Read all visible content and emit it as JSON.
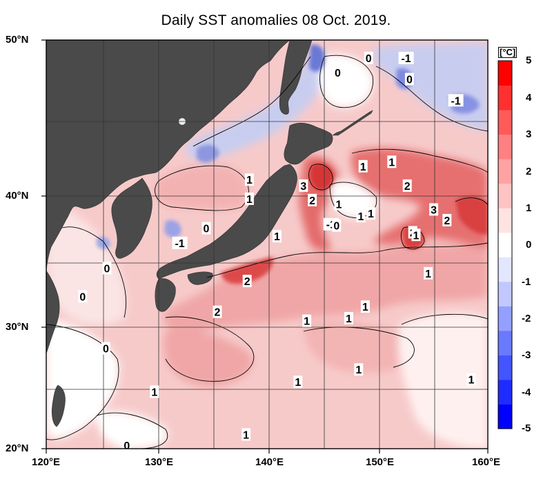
{
  "title": "Daily SST anomalies 08 Oct. 2019.",
  "y_axis_labels": [
    "50°N",
    "40°N",
    "30°N",
    "20°N"
  ],
  "x_axis_labels": [
    "120°E",
    "130°E",
    "140°E",
    "150°E",
    "160°E"
  ],
  "colorbar": {
    "unit": "[°C]",
    "tick_labels": [
      "5",
      "4",
      "3",
      "2",
      "1",
      "0",
      "-1",
      "-2",
      "-3",
      "-4",
      "-5"
    ],
    "scale": [
      "#0000ff",
      "#1f2cff",
      "#4255ff",
      "#6a7aff",
      "#94a0ff",
      "#c0c8ff",
      "#e2e6ff",
      "#ffffff",
      "#ffe2e2",
      "#ffc3c3",
      "#ffa2a2",
      "#ff8080",
      "#ff5a5a",
      "#ff3030",
      "#ff0000"
    ]
  },
  "colors": {
    "land": "#4a4a4a",
    "warm_bg": "#f7c9c9",
    "warm2": "#f0a0a0",
    "warm3": "#e56a6a",
    "warm4": "#d43434",
    "cold1": "#c8ceef",
    "cold2": "#8e99e0",
    "cold3": "#5865c8",
    "neutral": "#ffffff",
    "grid": "#333333"
  },
  "contour_labels": [
    {
      "text": "0",
      "lon": 125.5,
      "lat": 34.6
    },
    {
      "text": "0",
      "lon": 123.3,
      "lat": 32.4
    },
    {
      "text": "-1",
      "lon": 132.1,
      "lat": 36.5
    },
    {
      "text": "0",
      "lon": 134.5,
      "lat": 37.6
    },
    {
      "text": "1",
      "lon": 138.4,
      "lat": 41.1
    },
    {
      "text": "1",
      "lon": 138.4,
      "lat": 39.8
    },
    {
      "text": "3",
      "lon": 143.3,
      "lat": 40.7
    },
    {
      "text": "2",
      "lon": 144.1,
      "lat": 39.7
    },
    {
      "text": "1",
      "lon": 146.5,
      "lat": 39.4
    },
    {
      "text": "-1",
      "lon": 145.8,
      "lat": 37.9
    },
    {
      "text": "0",
      "lon": 146.3,
      "lat": 37.8
    },
    {
      "text": "1",
      "lon": 148.5,
      "lat": 38.5
    },
    {
      "text": "1",
      "lon": 149.4,
      "lat": 38.7
    },
    {
      "text": "1",
      "lon": 140.9,
      "lat": 37.0
    },
    {
      "text": "0",
      "lon": 146.4,
      "lat": 48.0
    },
    {
      "text": "0",
      "lon": 149.2,
      "lat": 48.9
    },
    {
      "text": "-1",
      "lon": 152.6,
      "lat": 48.9
    },
    {
      "text": "0",
      "lon": 152.9,
      "lat": 47.6
    },
    {
      "text": "-1",
      "lon": 157.1,
      "lat": 46.3
    },
    {
      "text": "1",
      "lon": 148.7,
      "lat": 42.0
    },
    {
      "text": "1",
      "lon": 151.3,
      "lat": 42.3
    },
    {
      "text": "2",
      "lon": 152.7,
      "lat": 40.7
    },
    {
      "text": "3",
      "lon": 155.1,
      "lat": 39.0
    },
    {
      "text": "2",
      "lon": 156.3,
      "lat": 38.2
    },
    {
      "text": "2",
      "lon": 153.2,
      "lat": 37.3
    },
    {
      "text": "1",
      "lon": 153.5,
      "lat": 37.1
    },
    {
      "text": "1",
      "lon": 154.6,
      "lat": 34.2
    },
    {
      "text": "2",
      "lon": 138.2,
      "lat": 33.6
    },
    {
      "text": "2",
      "lon": 135.5,
      "lat": 31.2
    },
    {
      "text": "1",
      "lon": 148.9,
      "lat": 31.6
    },
    {
      "text": "1",
      "lon": 147.4,
      "lat": 30.7
    },
    {
      "text": "1",
      "lon": 143.6,
      "lat": 30.5
    },
    {
      "text": "0",
      "lon": 125.4,
      "lat": 28.3
    },
    {
      "text": "1",
      "lon": 148.3,
      "lat": 26.6
    },
    {
      "text": "1",
      "lon": 142.8,
      "lat": 25.6
    },
    {
      "text": "1",
      "lon": 158.5,
      "lat": 25.8
    },
    {
      "text": "1",
      "lon": 129.8,
      "lat": 24.8
    },
    {
      "text": "1",
      "lon": 138.1,
      "lat": 21.2
    },
    {
      "text": "0",
      "lon": 127.3,
      "lat": 20.3
    }
  ]
}
